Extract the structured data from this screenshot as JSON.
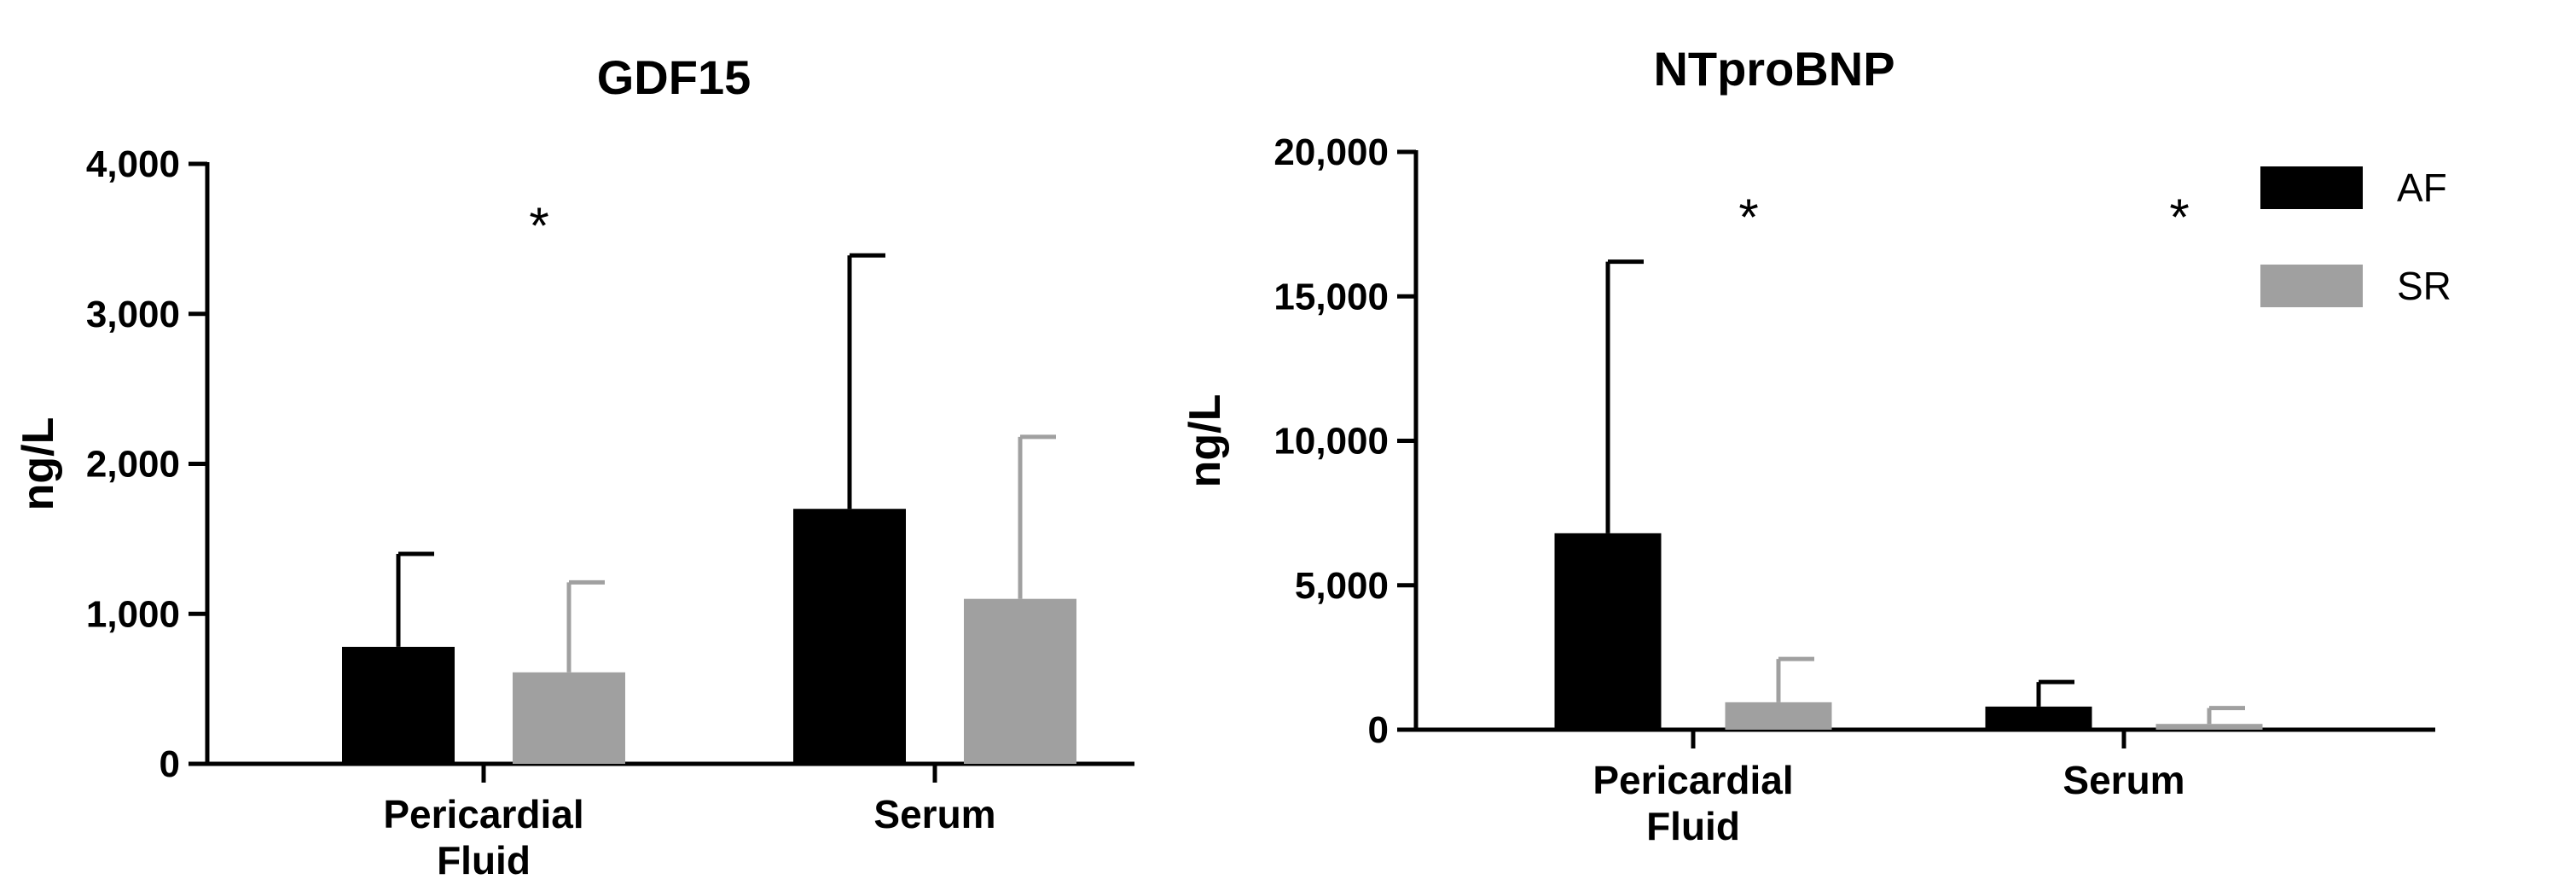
{
  "colors": {
    "AF": "#000000",
    "SR": "#a0a0a0"
  },
  "legend": [
    {
      "label": "AF",
      "color": "#000000"
    },
    {
      "label": "SR",
      "color": "#a0a0a0"
    }
  ],
  "chart_data": [
    {
      "type": "bar",
      "title": "GDF15",
      "ylabel": "ng/L",
      "xlabel": "",
      "ylim": [
        0,
        4000
      ],
      "yticks": [
        "0",
        "1,000",
        "2,000",
        "3,000",
        "4,000"
      ],
      "categories": [
        [
          "Pericardial",
          "Fluid"
        ],
        [
          "Serum"
        ]
      ],
      "series": [
        {
          "name": "AF",
          "values": [
            780,
            1700
          ],
          "errors": [
            620,
            1690
          ]
        },
        {
          "name": "SR",
          "values": [
            610,
            1100
          ],
          "errors": [
            600,
            1080
          ]
        }
      ],
      "annotations": [
        {
          "text": "*",
          "category": 0
        }
      ]
    },
    {
      "type": "bar",
      "title": "NTproBNP",
      "ylabel": "ng/L",
      "xlabel": "",
      "ylim": [
        0,
        20000
      ],
      "yticks": [
        "0",
        "5,000",
        "10,000",
        "15,000",
        "20,000"
      ],
      "categories": [
        [
          "Pericardial",
          "Fluid"
        ],
        [
          "Serum"
        ]
      ],
      "series": [
        {
          "name": "AF",
          "values": [
            6800,
            800
          ],
          "errors": [
            9400,
            850
          ]
        },
        {
          "name": "SR",
          "values": [
            950,
            200
          ],
          "errors": [
            1500,
            550
          ]
        }
      ],
      "annotations": [
        {
          "text": "*",
          "category": 0
        },
        {
          "text": "*",
          "category": 1
        }
      ]
    }
  ]
}
